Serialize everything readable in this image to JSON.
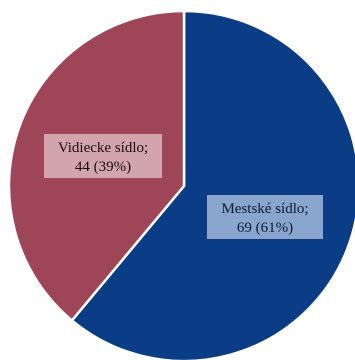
{
  "chart_data": {
    "type": "pie",
    "title": "",
    "start_angle_deg": 0,
    "direction": "clockwise",
    "slices": [
      {
        "name": "Mestské sídlo",
        "value": 69,
        "percent": "61%",
        "label_line1": "Mestské sídlo;",
        "label_line2": "69 (61%)",
        "color": "#0a3d85",
        "label_bg": "#8aa6cf",
        "label_color": "#0b1a33"
      },
      {
        "name": "Vidiecke sídlo",
        "value": 44,
        "percent": "39%",
        "label_line1": "Vidiecke sídlo;",
        "label_line2": "44 (39%)",
        "color": "#9e4658",
        "label_bg": "#d2a4ae",
        "label_color": "#1a0d10"
      }
    ],
    "legend": false
  }
}
